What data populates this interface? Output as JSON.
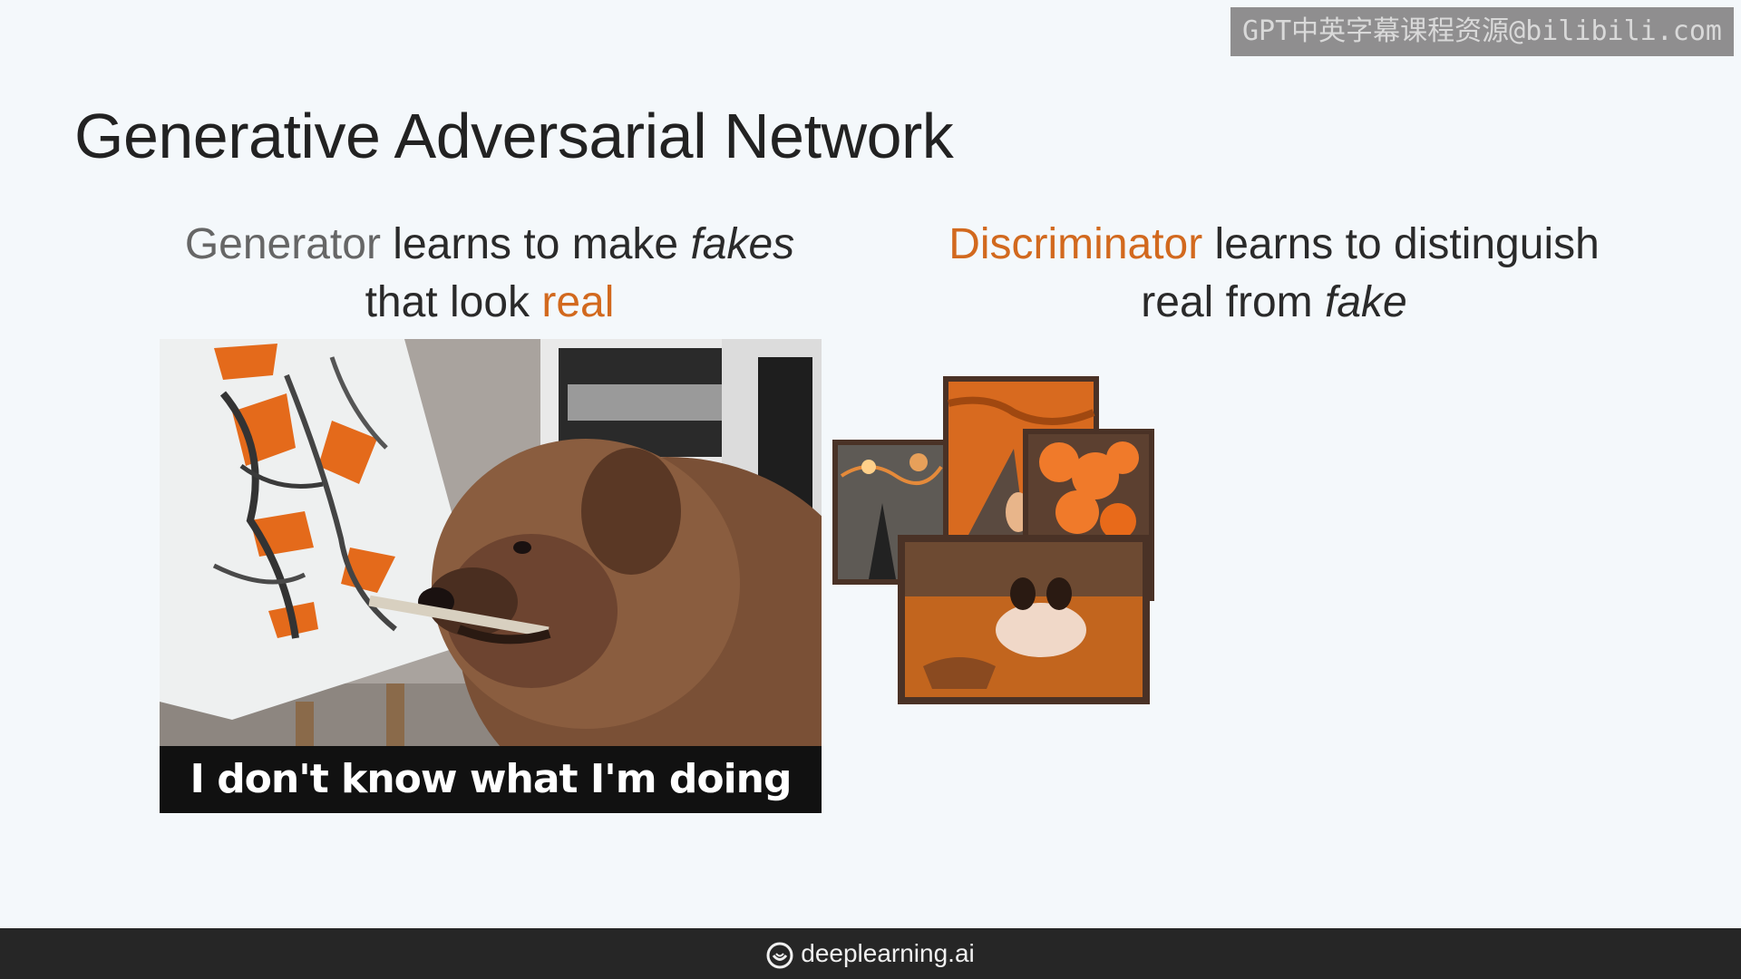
{
  "watermark": "GPT中英字幕课程资源@bilibili.com",
  "title": "Generative Adversarial Network",
  "generator": {
    "term": "Generator",
    "text_1": " learns to make ",
    "fakes": "fakes",
    "line_2": "that look ",
    "real": "real"
  },
  "discriminator": {
    "term": "Discriminator",
    "text_1": " learns to distinguish",
    "real": "real",
    "text_2": " from ",
    "fake": "fake"
  },
  "meme": {
    "caption": "I don't know what I'm doing"
  },
  "footer": {
    "brand": "deeplearning.ai",
    "logo_icon": "deeplearning-swirl-icon"
  },
  "colors": {
    "accent_orange": "#d2691e",
    "grey_term": "#666666",
    "footer_bg": "#262626"
  }
}
